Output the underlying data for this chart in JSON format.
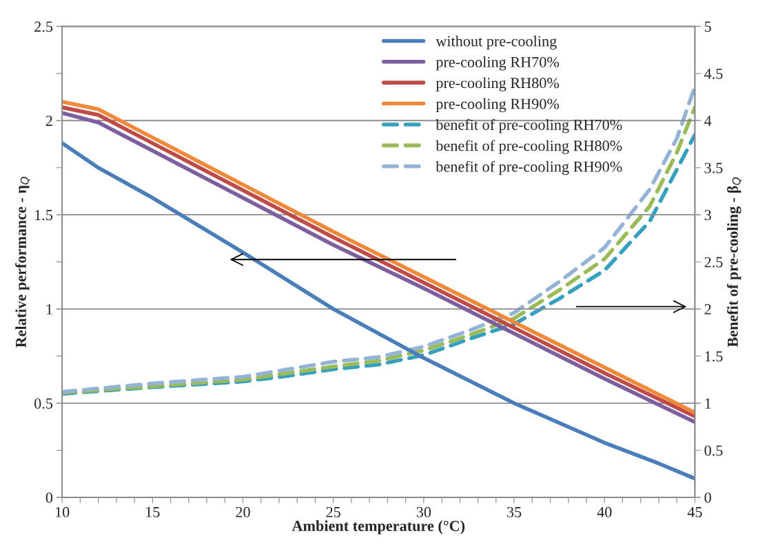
{
  "chart_data": {
    "type": "line",
    "xlabel": "Ambient temperature (°C)",
    "ylabel": "Relative performance - η$_{Q}$",
    "y2label": "Benefit of pre-cooling - β$_{Q}$",
    "xlim": [
      10,
      45
    ],
    "ylim": [
      0,
      2.5
    ],
    "y2lim": [
      0,
      5
    ],
    "xticks": [
      10,
      {
        "value": 11,
        "label": null
      },
      {
        "value": 12,
        "label": null
      },
      {
        "value": 13,
        "label": null
      },
      {
        "value": 14,
        "label": null
      },
      15,
      {
        "value": 16,
        "label": null
      },
      {
        "value": 17,
        "label": null
      },
      {
        "value": 18,
        "label": null
      },
      {
        "value": 19,
        "label": null
      },
      20,
      {
        "value": 21,
        "label": null
      },
      {
        "value": 22,
        "label": null
      },
      {
        "value": 23,
        "label": null
      },
      {
        "value": 24,
        "label": null
      },
      25,
      {
        "value": 26,
        "label": null
      },
      {
        "value": 27,
        "label": null
      },
      {
        "value": 28,
        "label": null
      },
      {
        "value": 29,
        "label": null
      },
      30,
      {
        "value": 31,
        "label": null
      },
      {
        "value": 32,
        "label": null
      },
      {
        "value": 33,
        "label": null
      },
      {
        "value": 34,
        "label": null
      },
      35,
      {
        "value": 36,
        "label": null
      },
      {
        "value": 37,
        "label": null
      },
      {
        "value": 38,
        "label": null
      },
      {
        "value": 39,
        "label": null
      },
      40,
      {
        "value": 41,
        "label": null
      },
      {
        "value": 42,
        "label": null
      },
      {
        "value": 43,
        "label": null
      },
      {
        "value": 44,
        "label": null
      },
      45
    ],
    "yticks": [
      0,
      0.5,
      1,
      1.5,
      2,
      2.5
    ],
    "y2ticks": [
      0,
      0.5,
      1,
      1.5,
      2,
      2.5,
      3,
      3.5,
      4,
      4.5,
      5
    ],
    "grid": "y",
    "legend": "top right",
    "marker": "none",
    "series": [
      {
        "name": "without pre-cooling",
        "color": "#4a7ebb",
        "line_style": "solid",
        "x": [
          10,
          12,
          15,
          20,
          25,
          30,
          35,
          40,
          43,
          45
        ],
        "values": [
          1.88,
          1.75,
          1.59,
          1.3,
          1.0,
          0.74,
          0.5,
          0.29,
          0.18,
          0.1
        ]
      },
      {
        "name": "pre-cooling RH70%",
        "color": "#7d5fa0",
        "line_style": "solid",
        "x": [
          10,
          12,
          15,
          20,
          25,
          30,
          35,
          40,
          45
        ],
        "values": [
          2.04,
          1.99,
          1.84,
          1.59,
          1.34,
          1.11,
          0.87,
          0.63,
          0.4
        ]
      },
      {
        "name": "pre-cooling RH80%",
        "color": "#be4b48",
        "line_style": "solid",
        "x": [
          10,
          12,
          15,
          20,
          25,
          30,
          35,
          40,
          45
        ],
        "values": [
          2.07,
          2.03,
          1.88,
          1.63,
          1.38,
          1.14,
          0.9,
          0.66,
          0.43
        ]
      },
      {
        "name": "pre-cooling RH90%",
        "color": "#f08a3a",
        "line_style": "solid",
        "x": [
          10,
          12,
          15,
          20,
          25,
          30,
          35,
          40,
          45
        ],
        "values": [
          2.1,
          2.06,
          1.91,
          1.66,
          1.41,
          1.17,
          0.93,
          0.69,
          0.45
        ]
      },
      {
        "name": "benefit of pre-cooling RH70%",
        "color": "#35a0bf",
        "line_style": "dashed",
        "axis": "y2",
        "x": [
          10,
          15,
          20,
          22.5,
          25,
          27.5,
          30,
          32.5,
          35,
          37.5,
          40,
          42.5,
          44,
          45
        ],
        "values": [
          1.1,
          1.17,
          1.23,
          1.29,
          1.36,
          1.41,
          1.51,
          1.68,
          1.84,
          2.11,
          2.41,
          2.93,
          3.48,
          3.85
        ]
      },
      {
        "name": "benefit of pre-cooling RH80%",
        "color": "#9bbb59",
        "line_style": "dashed",
        "axis": "y2",
        "x": [
          10,
          15,
          20,
          22.5,
          25,
          27.5,
          30,
          32.5,
          35,
          37.5,
          40,
          42.5,
          44,
          45
        ],
        "values": [
          1.11,
          1.18,
          1.25,
          1.32,
          1.39,
          1.45,
          1.56,
          1.72,
          1.9,
          2.2,
          2.53,
          3.09,
          3.66,
          4.14
        ]
      },
      {
        "name": "benefit of pre-cooling RH90%",
        "color": "#95b3d7",
        "line_style": "dashed",
        "axis": "y2",
        "x": [
          10,
          15,
          20,
          22.5,
          25,
          27.5,
          30,
          32.5,
          35,
          37.5,
          40,
          42.5,
          44,
          45
        ],
        "values": [
          1.12,
          1.21,
          1.28,
          1.36,
          1.44,
          1.49,
          1.6,
          1.77,
          1.96,
          2.29,
          2.65,
          3.27,
          3.81,
          4.36
        ]
      }
    ]
  }
}
